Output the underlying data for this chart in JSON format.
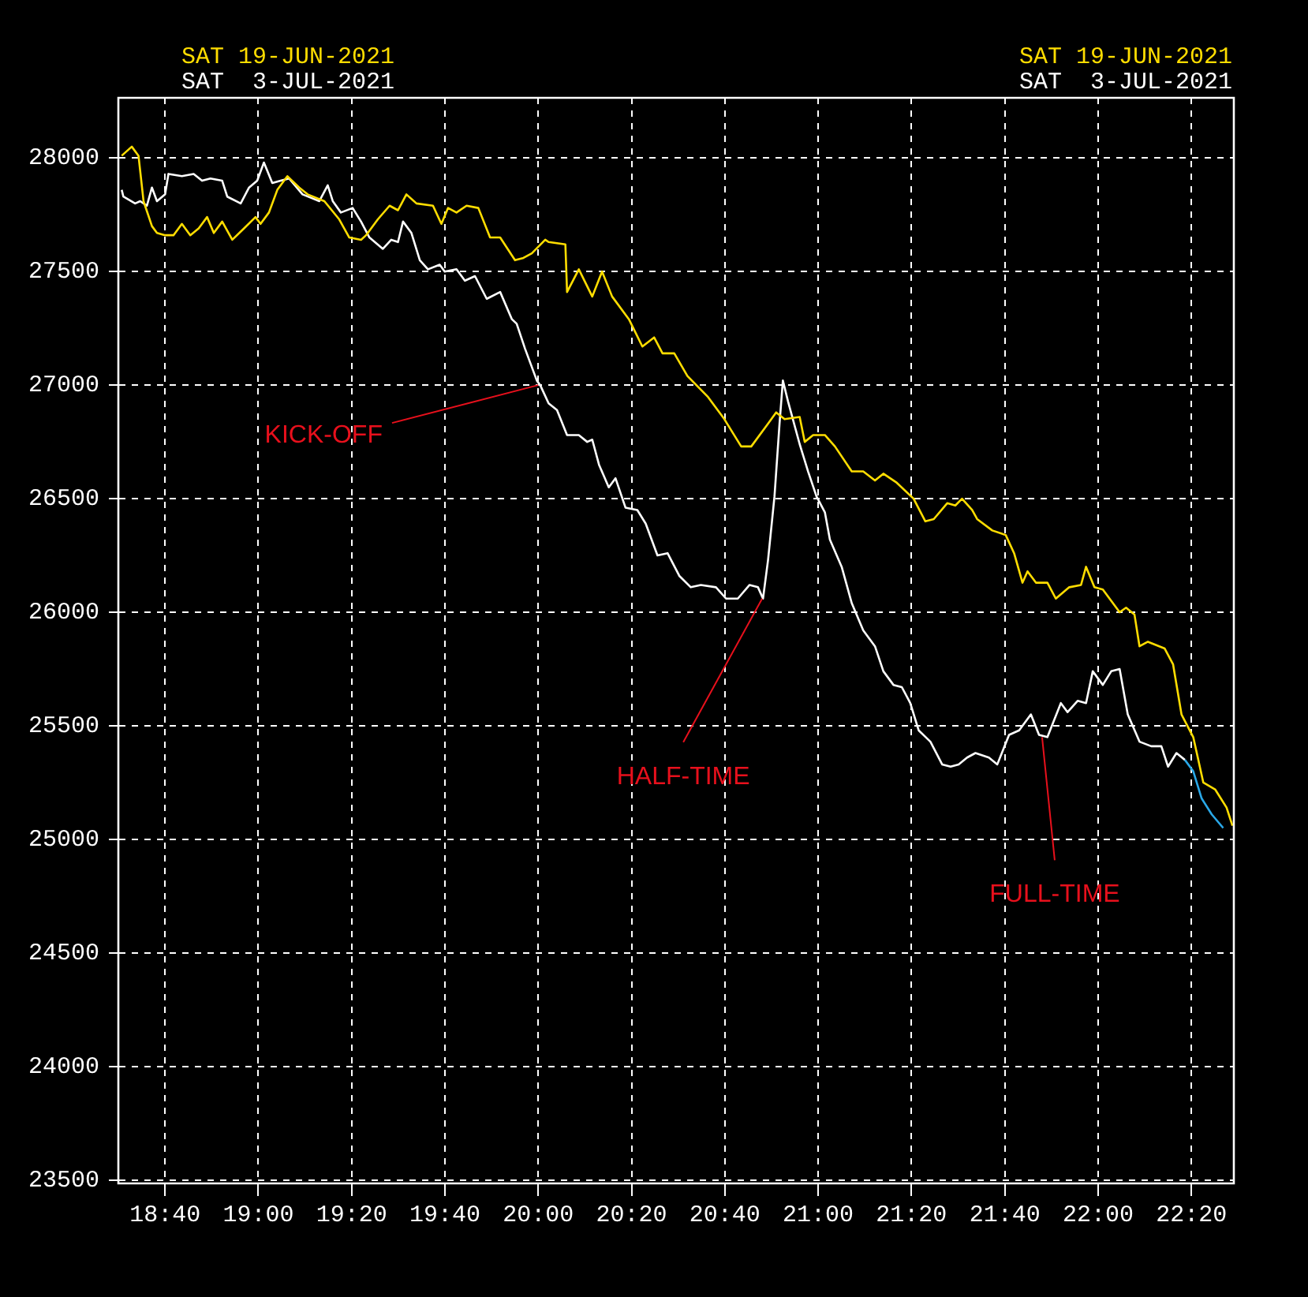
{
  "chart_data": {
    "type": "line",
    "xlim": [
      18.5,
      22.485
    ],
    "ylim": [
      23485,
      28265
    ],
    "xticks": [
      {
        "value": 18.6667,
        "label": "18:40"
      },
      {
        "value": 19,
        "label": "19:00"
      },
      {
        "value": 19.3333,
        "label": "19:20"
      },
      {
        "value": 19.6667,
        "label": "19:40"
      },
      {
        "value": 20,
        "label": "20:00"
      },
      {
        "value": 20.3333,
        "label": "20:20"
      },
      {
        "value": 20.6667,
        "label": "20:40"
      },
      {
        "value": 21,
        "label": "21:00"
      },
      {
        "value": 21.3333,
        "label": "21:20"
      },
      {
        "value": 21.6667,
        "label": "21:40"
      },
      {
        "value": 22,
        "label": "22:00"
      },
      {
        "value": 22.3333,
        "label": "22:20"
      }
    ],
    "yticks": [
      23500,
      24000,
      24500,
      25000,
      25500,
      26000,
      26500,
      27000,
      27500,
      28000
    ],
    "grid": true,
    "legend": "top",
    "marker": "none",
    "line_style": "solid",
    "annotations": [
      {
        "text": "KICK-OFF",
        "x": 20.0,
        "y": 27000
      },
      {
        "text": "HALF-TIME",
        "x": 20.8,
        "y": 26060
      },
      {
        "text": "FULL-TIME",
        "x": 21.8,
        "y": 25450
      }
    ],
    "series": [
      {
        "name": "SAT 19-JUN-2021",
        "color": "#ffdd00",
        "x": [
          18.512,
          18.548,
          18.572,
          18.59,
          18.62,
          18.638,
          18.667,
          18.697,
          18.727,
          18.757,
          18.787,
          18.817,
          18.841,
          18.871,
          18.907,
          18.949,
          18.99,
          19.008,
          19.038,
          19.068,
          19.104,
          19.146,
          19.176,
          19.236,
          19.289,
          19.325,
          19.367,
          19.385,
          19.427,
          19.469,
          19.499,
          19.529,
          19.565,
          19.624,
          19.654,
          19.678,
          19.708,
          19.744,
          19.786,
          19.828,
          19.864,
          19.917,
          19.947,
          19.977,
          20.025,
          20.037,
          20.097,
          20.103,
          20.145,
          20.193,
          20.228,
          20.264,
          20.324,
          20.372,
          20.414,
          20.444,
          20.486,
          20.533,
          20.605,
          20.665,
          20.725,
          20.761,
          20.821,
          20.85,
          20.88,
          20.934,
          20.952,
          20.982,
          21.024,
          21.06,
          21.12,
          21.161,
          21.203,
          21.233,
          21.281,
          21.341,
          21.383,
          21.413,
          21.461,
          21.49,
          21.514,
          21.55,
          21.568,
          21.622,
          21.67,
          21.7,
          21.73,
          21.748,
          21.778,
          21.819,
          21.849,
          21.897,
          21.939,
          21.957,
          21.987,
          22.017,
          22.077,
          22.1,
          22.13,
          22.148,
          22.178,
          22.238,
          22.268,
          22.298,
          22.34,
          22.376,
          22.418,
          22.459,
          22.48
        ],
        "values": [
          28010,
          28050,
          28010,
          27810,
          27700,
          27670,
          27660,
          27660,
          27710,
          27660,
          27690,
          27740,
          27670,
          27720,
          27640,
          27690,
          27740,
          27710,
          27760,
          27860,
          27920,
          27870,
          27840,
          27810,
          27730,
          27650,
          27640,
          27660,
          27730,
          27790,
          27770,
          27840,
          27800,
          27790,
          27710,
          27780,
          27760,
          27790,
          27780,
          27650,
          27650,
          27550,
          27560,
          27580,
          27640,
          27630,
          27620,
          27410,
          27510,
          27390,
          27500,
          27390,
          27290,
          27170,
          27210,
          27140,
          27140,
          27040,
          26950,
          26850,
          26730,
          26730,
          26830,
          26880,
          26850,
          26860,
          26750,
          26780,
          26780,
          26730,
          26620,
          26620,
          26580,
          26610,
          26570,
          26500,
          26400,
          26410,
          26480,
          26470,
          26500,
          26450,
          26410,
          26360,
          26340,
          26260,
          26130,
          26180,
          26130,
          26130,
          26060,
          26110,
          26120,
          26200,
          26110,
          26100,
          26000,
          26020,
          25990,
          25850,
          25870,
          25840,
          25770,
          25550,
          25450,
          25250,
          25220,
          25140,
          25060
        ]
      },
      {
        "name": "SAT  3-JUL-2021",
        "color": "#ffffff",
        "x": [
          18.512,
          18.518,
          18.56,
          18.578,
          18.602,
          18.62,
          18.638,
          18.667,
          18.679,
          18.727,
          18.769,
          18.799,
          18.829,
          18.871,
          18.889,
          18.937,
          18.967,
          18.996,
          19.02,
          19.05,
          19.08,
          19.11,
          19.158,
          19.218,
          19.248,
          19.266,
          19.295,
          19.337,
          19.367,
          19.397,
          19.445,
          19.475,
          19.499,
          19.517,
          19.547,
          19.577,
          19.606,
          19.648,
          19.666,
          19.708,
          19.738,
          19.774,
          19.816,
          19.864,
          19.906,
          19.923,
          19.953,
          19.995,
          20.007,
          20.037,
          20.067,
          20.103,
          20.145,
          20.175,
          20.193,
          20.217,
          20.252,
          20.276,
          20.312,
          20.354,
          20.384,
          20.426,
          20.462,
          20.504,
          20.545,
          20.581,
          20.635,
          20.671,
          20.713,
          20.755,
          20.785,
          20.803,
          20.821,
          20.844,
          20.862,
          20.874,
          20.892,
          20.934,
          20.964,
          20.994,
          21.024,
          21.042,
          21.084,
          21.12,
          21.161,
          21.203,
          21.233,
          21.269,
          21.299,
          21.329,
          21.359,
          21.401,
          21.443,
          21.473,
          21.502,
          21.532,
          21.562,
          21.61,
          21.64,
          21.682,
          21.718,
          21.76,
          21.789,
          21.819,
          21.867,
          21.891,
          21.927,
          21.957,
          21.981,
          22.017,
          22.047,
          22.077,
          22.106,
          22.148,
          22.19,
          22.226,
          22.25,
          22.28,
          22.31
        ],
        "values": [
          27860,
          27830,
          27800,
          27810,
          27790,
          27870,
          27810,
          27840,
          27930,
          27920,
          27930,
          27900,
          27910,
          27900,
          27830,
          27800,
          27870,
          27900,
          27980,
          27890,
          27900,
          27910,
          27840,
          27810,
          27880,
          27810,
          27760,
          27780,
          27720,
          27650,
          27600,
          27640,
          27630,
          27720,
          27670,
          27550,
          27510,
          27530,
          27500,
          27510,
          27460,
          27480,
          27380,
          27410,
          27290,
          27270,
          27160,
          27020,
          27000,
          26920,
          26890,
          26780,
          26780,
          26750,
          26760,
          26650,
          26550,
          26590,
          26460,
          26450,
          26390,
          26250,
          26260,
          26160,
          26110,
          26120,
          26110,
          26060,
          26060,
          26120,
          26110,
          26060,
          26230,
          26510,
          26830,
          27020,
          26930,
          26740,
          26620,
          26510,
          26440,
          26320,
          26200,
          26040,
          25920,
          25850,
          25740,
          25680,
          25670,
          25600,
          25480,
          25430,
          25330,
          25320,
          25330,
          25360,
          25380,
          25360,
          25330,
          25460,
          25480,
          25550,
          25460,
          25450,
          25600,
          25560,
          25610,
          25600,
          25740,
          25680,
          25740,
          25750,
          25550,
          25430,
          25410,
          25410,
          25320,
          25380,
          25350
        ]
      },
      {
        "color": "#2aa8e8",
        "x": [
          22.31,
          22.34,
          22.37,
          22.406,
          22.447
        ],
        "values": [
          25350,
          25300,
          25180,
          25110,
          25050
        ]
      }
    ]
  }
}
